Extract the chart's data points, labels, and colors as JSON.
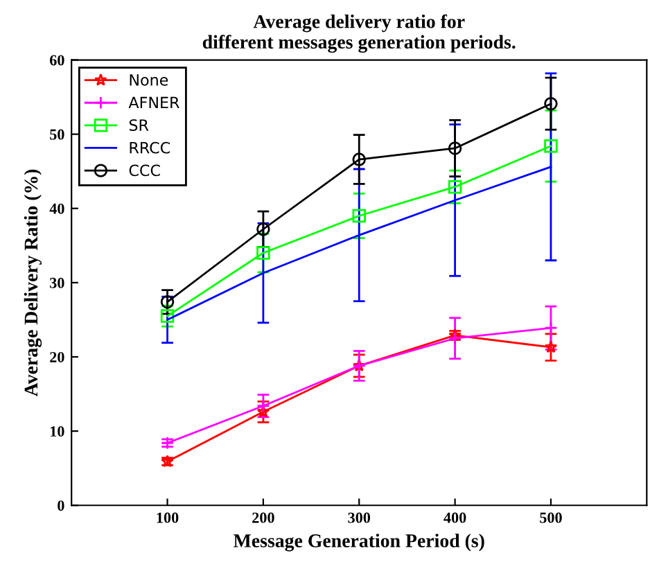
{
  "chart_data": {
    "type": "line",
    "title": "Average delivery ratio for\ndifferent messages generation periods.",
    "xlabel": "Message Generation Period (s)",
    "ylabel": "Average Delivery Ratio (%)",
    "x": [
      100,
      200,
      300,
      400,
      500
    ],
    "xlim": [
      0,
      600
    ],
    "xticks": [
      100,
      200,
      300,
      400,
      500
    ],
    "ylim": [
      0,
      60
    ],
    "yticks": [
      0,
      10,
      20,
      30,
      40,
      50,
      60
    ],
    "grid": false,
    "legend": "top left",
    "series": [
      {
        "name": "None",
        "color": "#ff0000",
        "marker": "star",
        "values": [
          5.9,
          12.6,
          18.8,
          22.9,
          21.3
        ],
        "errors": [
          0.5,
          1.4,
          1.5,
          0.6,
          1.8
        ]
      },
      {
        "name": "AFNER",
        "color": "#ff00ff",
        "marker": "cross",
        "values": [
          8.4,
          13.4,
          18.8,
          22.5,
          23.9
        ],
        "errors": [
          0.5,
          1.5,
          2,
          2.75,
          2.9
        ]
      },
      {
        "name": "SR",
        "color": "#00ff00",
        "marker": "square",
        "values": [
          25.5,
          34,
          39,
          42.9,
          48.4
        ],
        "errors": [
          1.4,
          2.6,
          3,
          2.2,
          4.8
        ]
      },
      {
        "name": "RRCC",
        "color": "#0000ff",
        "marker": "none",
        "values": [
          25,
          31.3,
          36.4,
          41.1,
          45.6
        ],
        "errors": [
          3.1,
          6.7,
          8.9,
          10.2,
          12.6
        ]
      },
      {
        "name": "CCC",
        "color": "#000000",
        "marker": "circle",
        "values": [
          27.4,
          37.2,
          46.6,
          48.1,
          54.1
        ],
        "errors": [
          1.6,
          2.4,
          3.3,
          3.8,
          3.5
        ]
      }
    ]
  }
}
